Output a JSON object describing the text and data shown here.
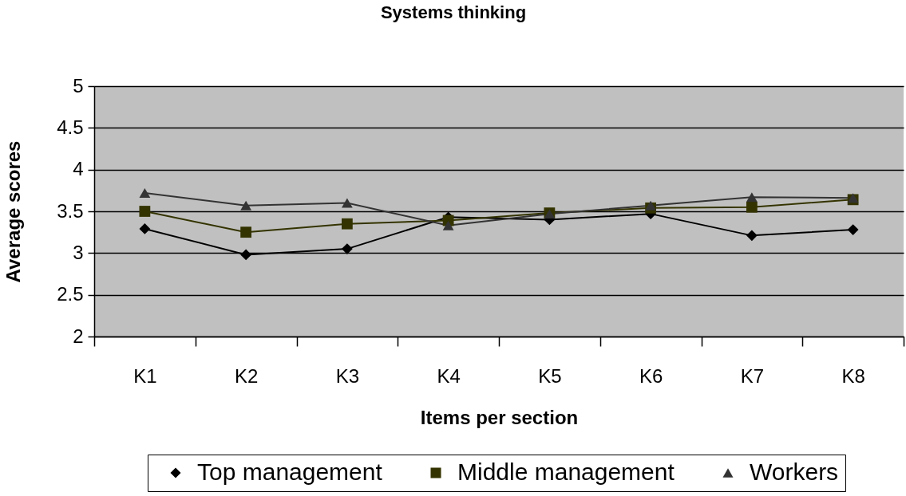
{
  "chart_data": {
    "type": "line",
    "title": "Systems thinking",
    "xlabel": "Items per section",
    "ylabel": "Average scores",
    "categories": [
      "K1",
      "K2",
      "K3",
      "K4",
      "K5",
      "K6",
      "K7",
      "K8"
    ],
    "series": [
      {
        "name": "Top management",
        "color": "#000000",
        "marker": "diamond",
        "values": [
          3.29,
          2.98,
          3.05,
          3.43,
          3.4,
          3.47,
          3.21,
          3.28
        ]
      },
      {
        "name": "Middle management",
        "color": "#333300",
        "marker": "square",
        "values": [
          3.5,
          3.25,
          3.35,
          3.39,
          3.48,
          3.54,
          3.55,
          3.64
        ]
      },
      {
        "name": "Workers",
        "color": "#333333",
        "marker": "triangle",
        "values": [
          3.72,
          3.57,
          3.6,
          3.33,
          3.47,
          3.57,
          3.67,
          3.66
        ]
      }
    ],
    "ylim": [
      2,
      5
    ],
    "yticks": [
      2,
      2.5,
      3,
      3.5,
      4,
      4.5,
      5
    ],
    "grid": "y",
    "legend": "bottom"
  }
}
